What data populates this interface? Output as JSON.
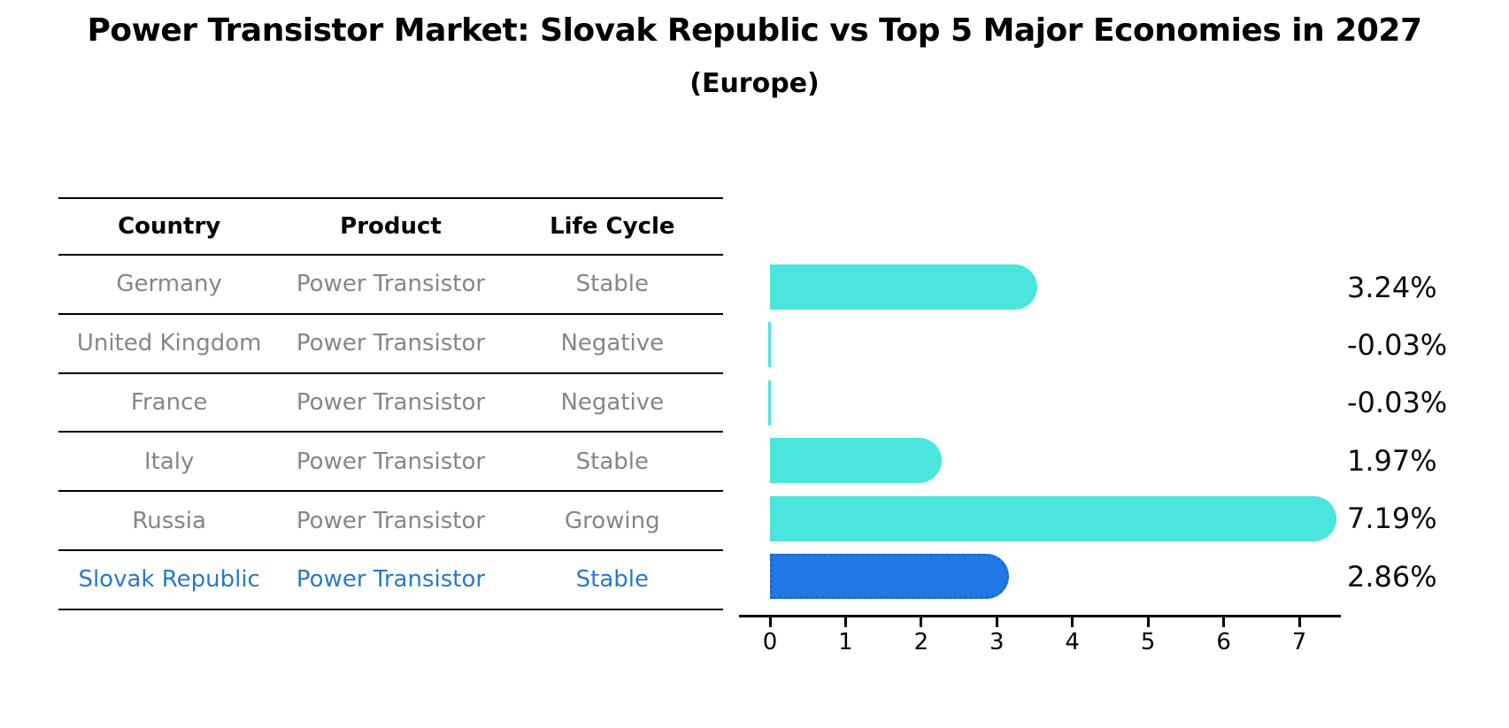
{
  "title": "Power Transistor Market: Slovak Republic vs Top 5 Major Economies in 2027",
  "subtitle": "(Europe)",
  "table": {
    "headers": [
      "Country",
      "Product",
      "Life Cycle"
    ],
    "rows": [
      {
        "country": "Germany",
        "product": "Power Transistor",
        "life_cycle": "Stable",
        "highlighted": false
      },
      {
        "country": "United Kingdom",
        "product": "Power Transistor",
        "life_cycle": "Negative",
        "highlighted": false
      },
      {
        "country": "France",
        "product": "Power Transistor",
        "life_cycle": "Negative",
        "highlighted": false
      },
      {
        "country": "Italy",
        "product": "Power Transistor",
        "life_cycle": "Stable",
        "highlighted": false
      },
      {
        "country": "Russia",
        "product": "Power Transistor",
        "life_cycle": "Growing",
        "highlighted": false
      },
      {
        "country": "Slovak Republic",
        "product": "Power Transistor",
        "life_cycle": "Stable",
        "highlighted": true
      }
    ]
  },
  "chart_data": {
    "type": "bar",
    "orientation": "horizontal",
    "title": "Power Transistor Market: Slovak Republic vs Top 5 Major Economies in 2027 (Europe)",
    "categories": [
      "Germany",
      "United Kingdom",
      "France",
      "Italy",
      "Russia",
      "Slovak Republic"
    ],
    "values": [
      3.24,
      -0.03,
      -0.03,
      1.97,
      7.19,
      2.86
    ],
    "value_labels": [
      "3.24%",
      "-0.03%",
      "-0.03%",
      "1.97%",
      "7.19%",
      "2.86%"
    ],
    "x_ticks": [
      "0",
      "1",
      "2",
      "3",
      "4",
      "5",
      "6",
      "7"
    ],
    "xlim": [
      0,
      7.5
    ],
    "grid": false,
    "legend": "none",
    "bar_color": "#4AE6DE",
    "highlight_bar_color": "#2178E4",
    "highlight_index": 5
  },
  "colors": {
    "bar_cyan": "#4AE6DE",
    "bar_blue": "#2178E4",
    "bar_blue_border": "#1d66d0",
    "highlight_text": "#2979C9",
    "row_text": "#868686",
    "axis_and_titles": "#000000"
  }
}
